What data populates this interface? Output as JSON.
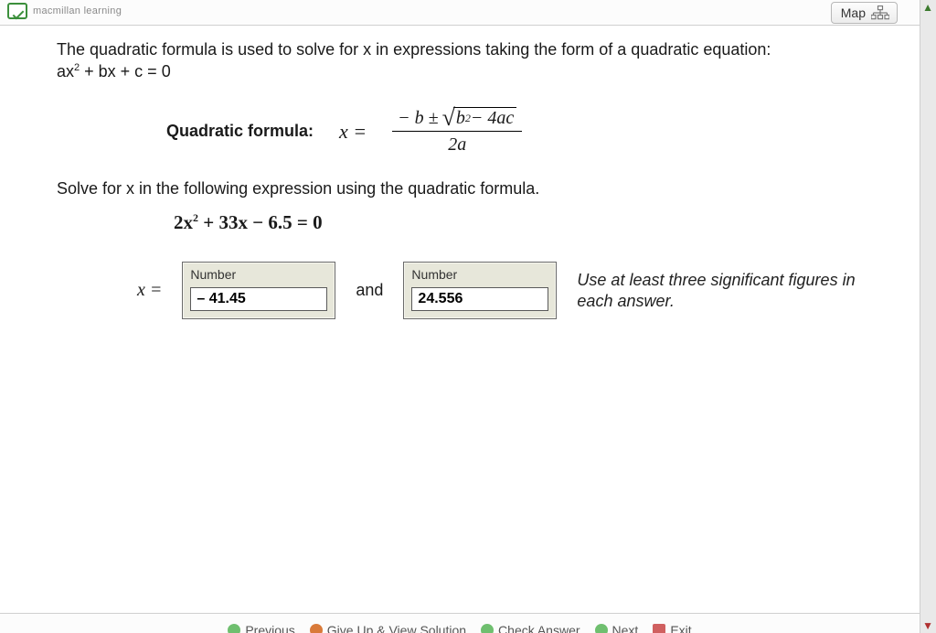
{
  "brand": {
    "name": "macmillan learning"
  },
  "topbar": {
    "map_label": "Map"
  },
  "question": {
    "intro": "The quadratic formula is used to solve for x in expressions taking the form of a quadratic equation:",
    "stdform_html": "ax<sup>2</sup> + bx + c = 0",
    "qf_label": "Quadratic formula:",
    "x_equals": "x =",
    "formula": {
      "num_prefix": "− b ±",
      "radicand_html": "b<sup class='ser-sup'>2</sup> − 4ac",
      "den": "2a"
    },
    "prompt": "Solve for x in the following expression using the quadratic formula.",
    "given_html": "2x<sup>2</sup> + 33x − 6.5 = 0"
  },
  "inputs": {
    "x_equals": "x =",
    "box_header": "Number",
    "value1": "– 41.45",
    "and": "and",
    "value2": "24.556",
    "hint": "Use at least three significant figures in each answer."
  },
  "footer": {
    "previous": "Previous",
    "giveup": "Give Up & View Solution",
    "check": "Check Answer",
    "next": "Next",
    "exit": "Exit"
  }
}
